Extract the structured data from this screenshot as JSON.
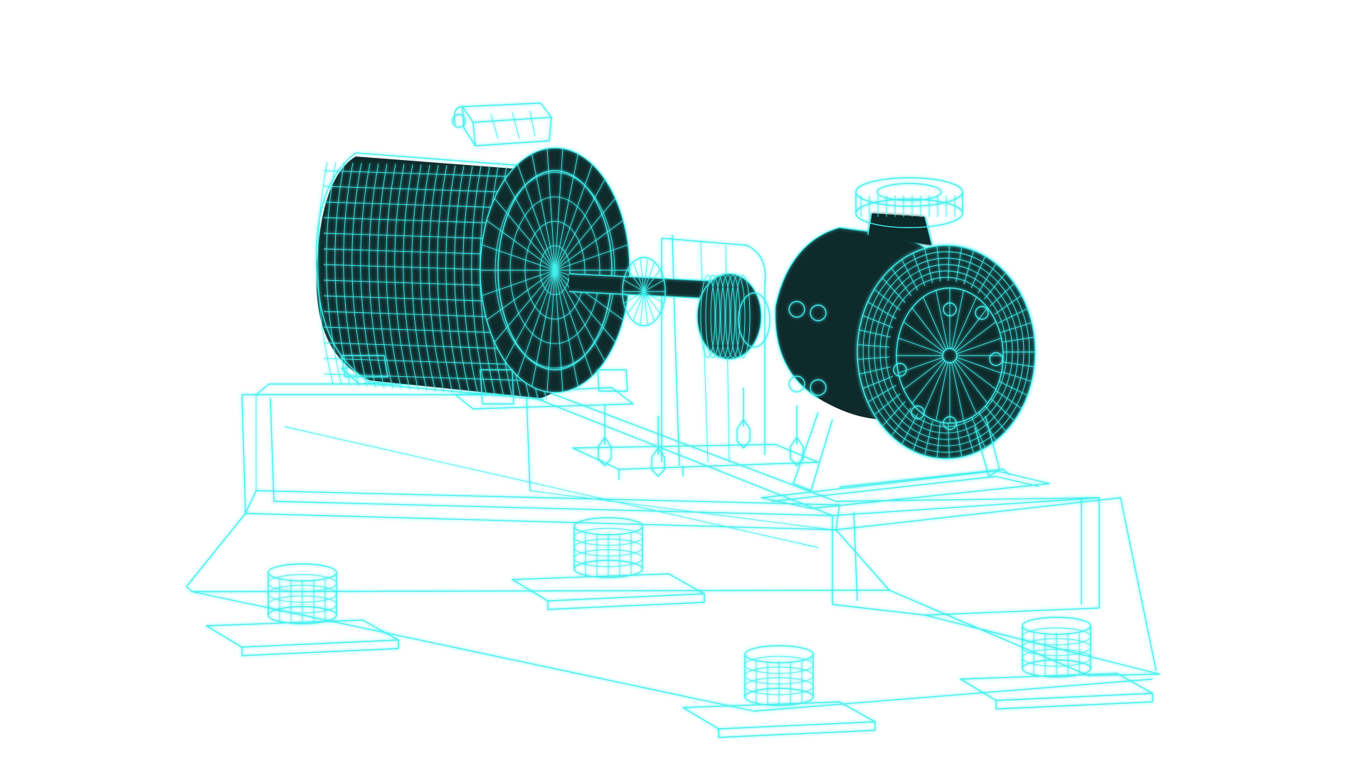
{
  "image": {
    "subject": "wireframe-pump-motor-assembly",
    "colors": {
      "wire": "#3FF0EE",
      "wire_dark": "#1FBFC0",
      "fill_dark": "#0F2A2B",
      "background": "#FFFFFF"
    }
  }
}
